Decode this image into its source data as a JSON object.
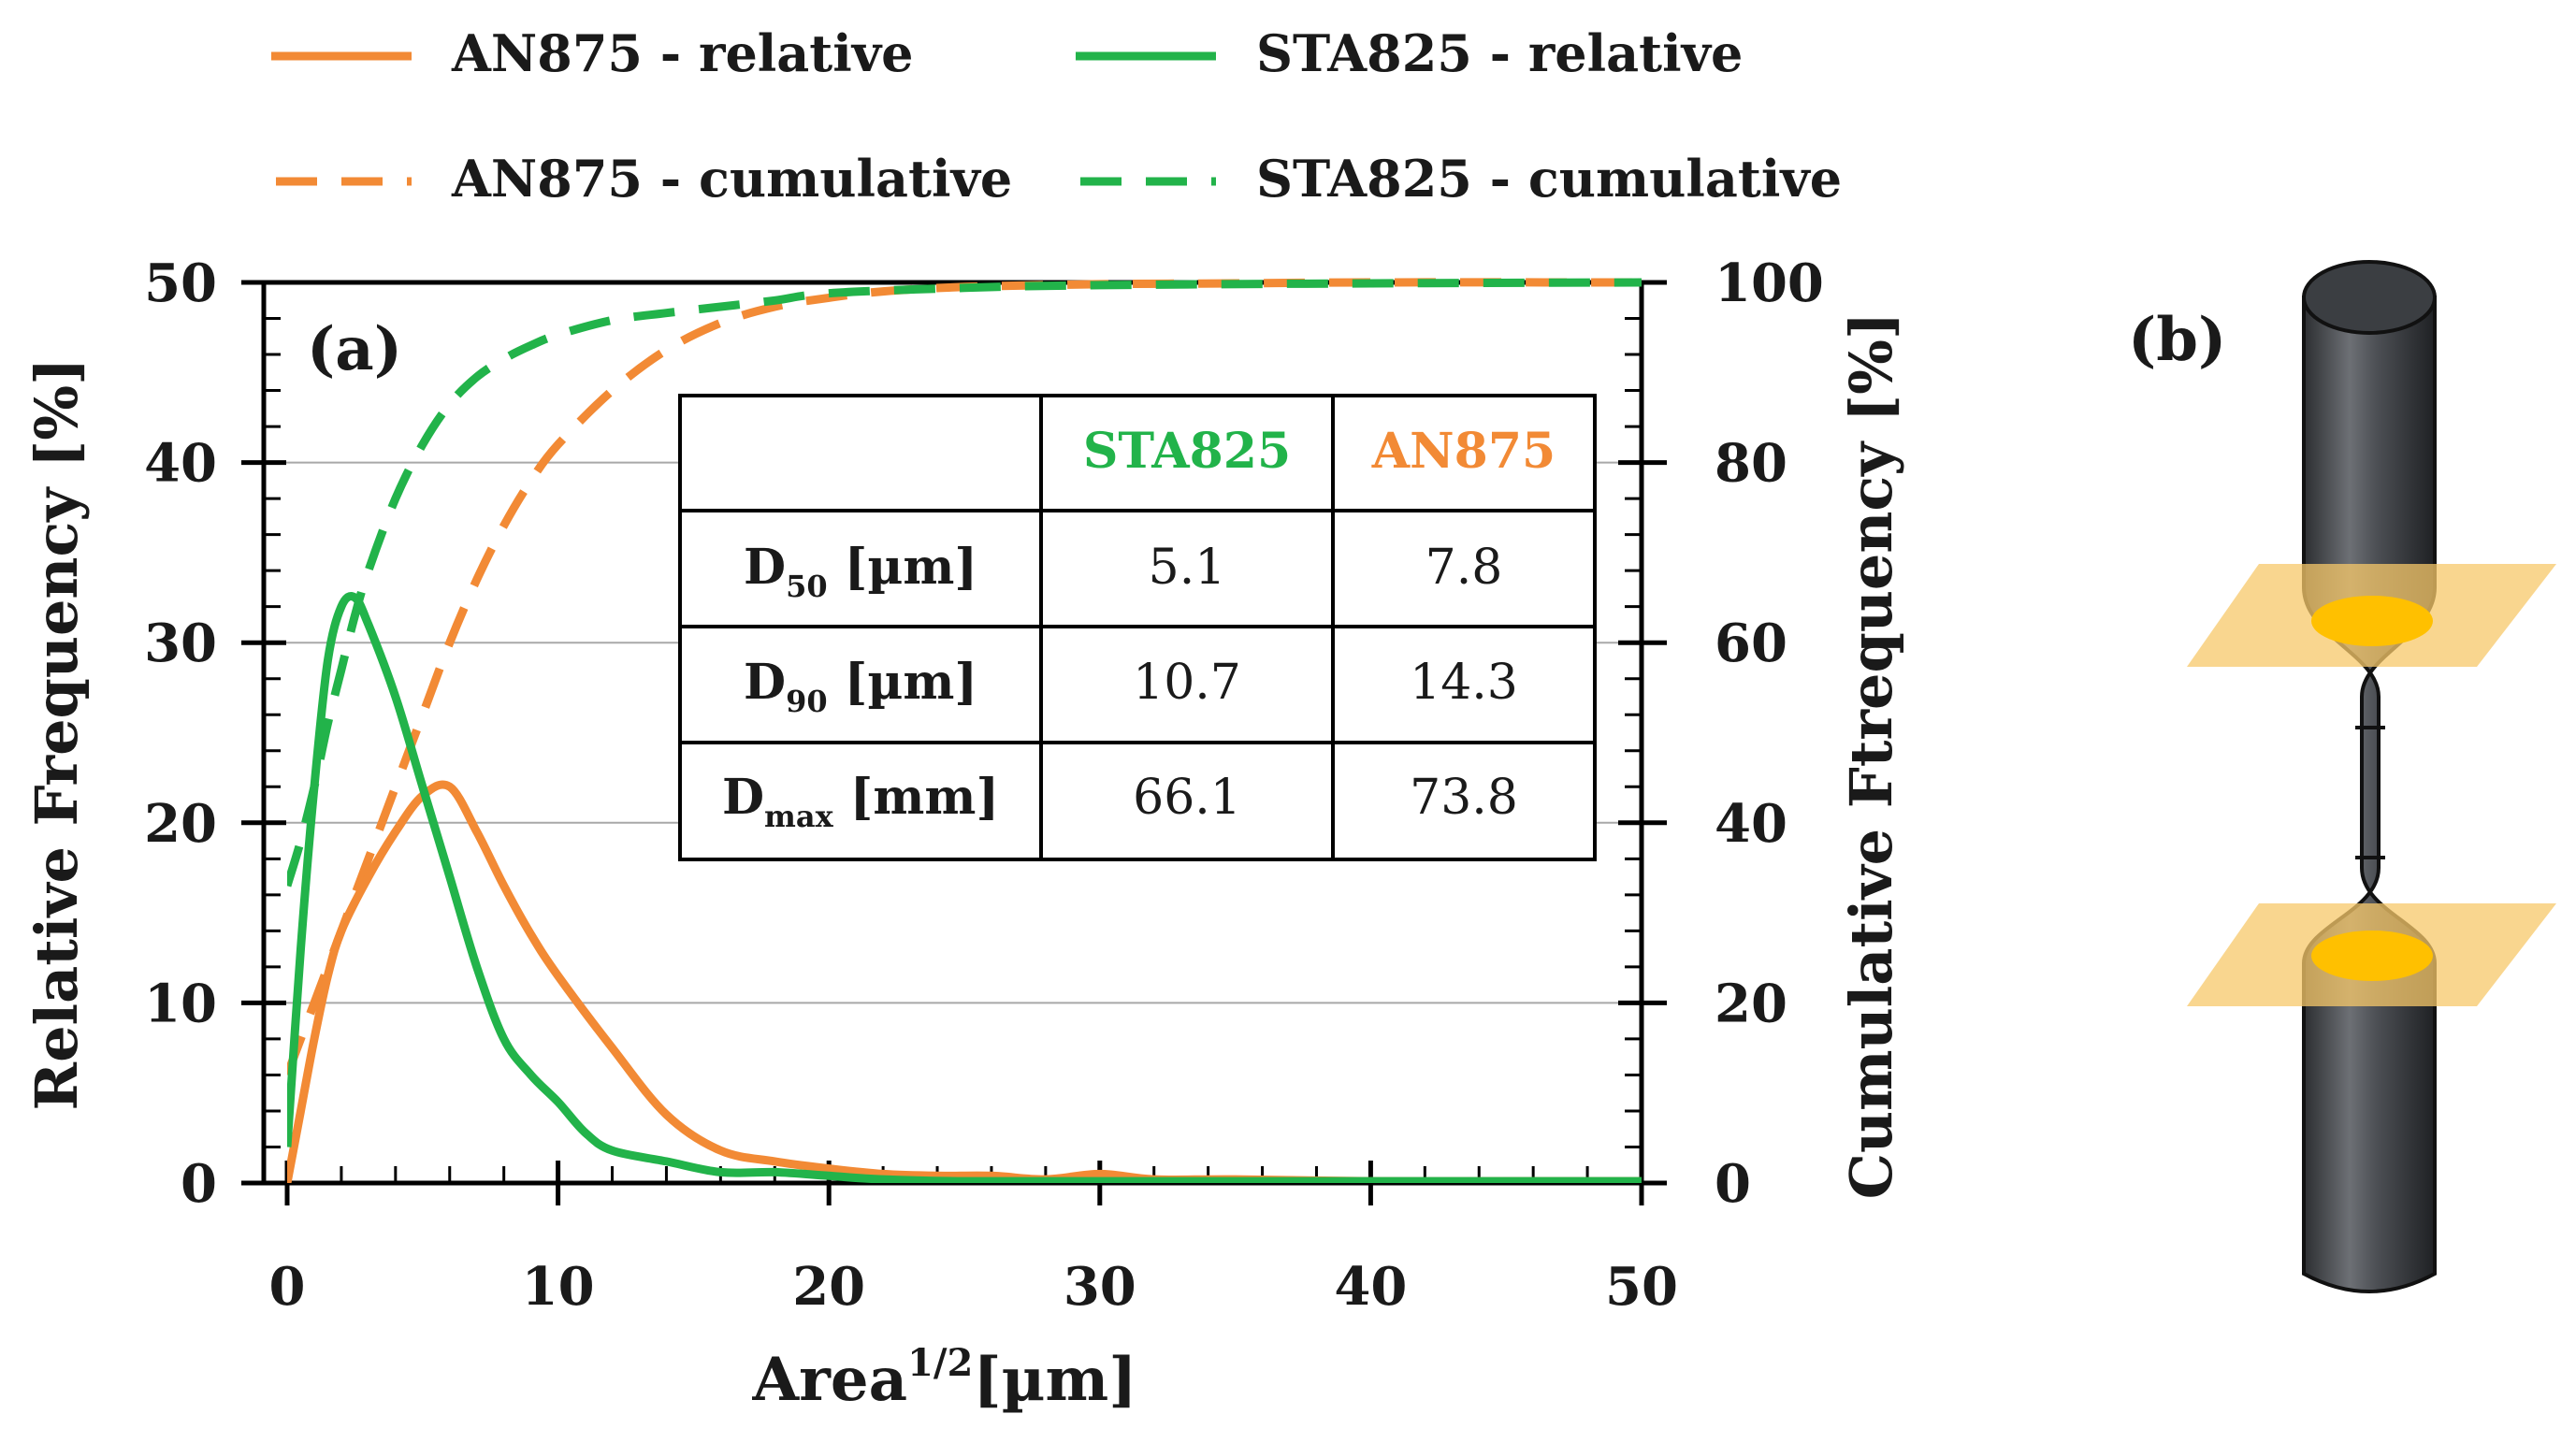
{
  "chart_data": {
    "type": "line",
    "panel_label": "(a)",
    "xlabel": "Area",
    "xlabel_sup": "1/2",
    "xlabel_unit": "[µm]",
    "ylabel": "Relative Frequency [%]",
    "y2label": "Cumulative Ftrequency [%]",
    "xlim": [
      0,
      50
    ],
    "ylim": [
      0,
      50
    ],
    "y2lim": [
      0,
      100
    ],
    "xticks": [
      "0",
      "10",
      "20",
      "30",
      "40",
      "50"
    ],
    "yticks": [
      "0",
      "10",
      "20",
      "30",
      "40",
      "50"
    ],
    "y2ticks": [
      "0",
      "20",
      "40",
      "60",
      "80",
      "100"
    ],
    "grid": "horizontal",
    "legend_position": "top",
    "series": [
      {
        "name": "AN875 - relative",
        "color": "#f28a35",
        "style": "solid",
        "axis": "left",
        "x": [
          0,
          0.5,
          1,
          1.5,
          2,
          3,
          4,
          5,
          6,
          7,
          8,
          9,
          10,
          12,
          14,
          16,
          18,
          20,
          22,
          24,
          26,
          28,
          30,
          32,
          35,
          40,
          45,
          50
        ],
        "y": [
          0,
          4,
          8,
          11.5,
          14,
          17,
          19.5,
          21.5,
          22,
          19.5,
          16.5,
          13.8,
          11.5,
          7.5,
          3.8,
          1.8,
          1.2,
          0.8,
          0.5,
          0.4,
          0.4,
          0.2,
          0.5,
          0.2,
          0.2,
          0.1,
          0.1,
          0.1
        ]
      },
      {
        "name": "STA825 - relative",
        "color": "#22b34a",
        "style": "solid",
        "axis": "left",
        "x": [
          0,
          0.5,
          1,
          1.5,
          2,
          2.5,
          3,
          4,
          5,
          6,
          7,
          8,
          9,
          10,
          11,
          12,
          14,
          16,
          18,
          20,
          22,
          25,
          30,
          40,
          50
        ],
        "y": [
          2,
          13,
          22,
          29,
          32,
          32.5,
          31,
          27,
          22,
          17,
          12,
          8,
          6,
          4.5,
          2.8,
          1.8,
          1.2,
          0.6,
          0.6,
          0.4,
          0.2,
          0.1,
          0.1,
          0.1,
          0.1
        ]
      },
      {
        "name": "AN875 - cumulative",
        "color": "#f28a35",
        "style": "dashed",
        "axis": "right",
        "x": [
          0,
          1,
          2,
          3,
          4,
          5,
          6,
          7,
          8,
          9,
          10,
          12,
          14,
          16,
          18,
          20,
          22,
          25,
          30,
          35,
          40,
          50
        ],
        "y": [
          12,
          20,
          28,
          36,
          44,
          52,
          60,
          67,
          73,
          78,
          82,
          88,
          92.5,
          95.5,
          97.3,
          98.3,
          99,
          99.5,
          99.8,
          99.9,
          100,
          100
        ]
      },
      {
        "name": "STA825 - cumulative",
        "color": "#22b34a",
        "style": "dashed",
        "axis": "right",
        "x": [
          0,
          0.5,
          1,
          1.5,
          2,
          2.5,
          3,
          4,
          5,
          6,
          7,
          8,
          9,
          10,
          12,
          14,
          16,
          18,
          20,
          25,
          30,
          40,
          50
        ],
        "y": [
          33,
          38,
          44,
          51,
          57,
          63,
          68,
          76,
          82,
          86.5,
          89.5,
          91.5,
          93,
          94.2,
          95.8,
          96.6,
          97.3,
          98,
          98.8,
          99.4,
          99.7,
          99.9,
          100
        ]
      }
    ],
    "table": {
      "headers": [
        "",
        "STA825",
        "AN875"
      ],
      "header_colors": [
        "#1a1a1a",
        "#22b34a",
        "#f28a35"
      ],
      "rows": [
        {
          "label_main": "D",
          "label_sub": "50",
          "label_unit": " [µm]",
          "values": [
            "5.1",
            "7.8"
          ]
        },
        {
          "label_main": "D",
          "label_sub": "90",
          "label_unit": " [µm]",
          "values": [
            "10.7",
            "14.3"
          ]
        },
        {
          "label_main": "D",
          "label_sub": "max",
          "label_unit": " [mm]",
          "values": [
            "66.1",
            "73.8"
          ]
        }
      ]
    }
  },
  "specimen": {
    "panel_label": "(b)",
    "body_color": "#4a4d52",
    "plane_color": "#f7c869",
    "section_color": "#ffc000"
  }
}
